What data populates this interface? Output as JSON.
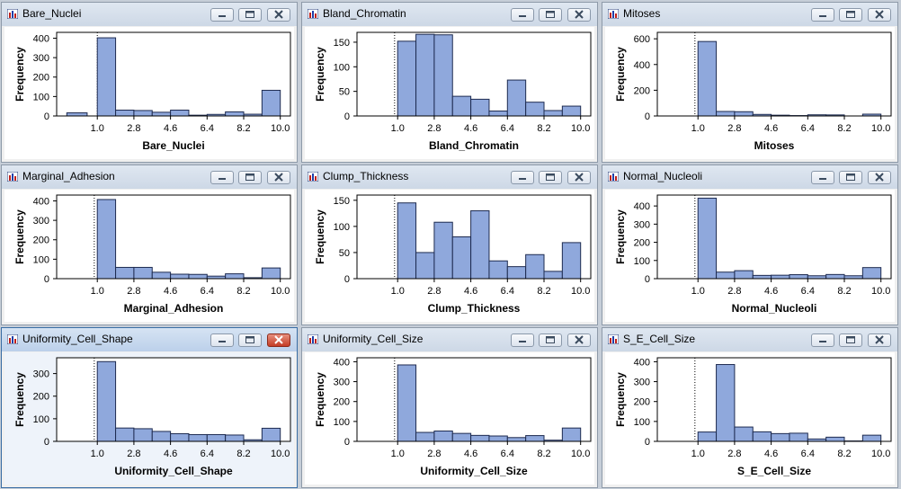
{
  "colors": {
    "bar_fill": "#8fa8dc",
    "bar_stroke": "#1e2b50",
    "plot_bg": "#ffffff"
  },
  "icons": {
    "window_icon": "bar-chart-icon"
  },
  "windows": [
    {
      "title": "Bare_Nuclei",
      "active": false
    },
    {
      "title": "Bland_Chromatin",
      "active": false
    },
    {
      "title": "Mitoses",
      "active": false
    },
    {
      "title": "Marginal_Adhesion",
      "active": false
    },
    {
      "title": "Clump_Thickness",
      "active": false
    },
    {
      "title": "Normal_Nucleoli",
      "active": false
    },
    {
      "title": "Uniformity_Cell_Shape",
      "active": true
    },
    {
      "title": "Uniformity_Cell_Size",
      "active": false
    },
    {
      "title": "S_E_Cell_Size",
      "active": false
    }
  ],
  "chart_data": [
    {
      "type": "bar",
      "xlabel": "Bare_Nuclei",
      "ylabel": "Frequency",
      "ylim": [
        0,
        430
      ],
      "yticks": [
        0,
        100,
        200,
        300,
        400
      ],
      "x_range": [
        -1.0,
        10.5
      ],
      "reference_line_x": 1.0,
      "xticks": [
        "1.0",
        "2.8",
        "4.6",
        "6.4",
        "8.2",
        "10.0"
      ],
      "bins": [
        {
          "x0": -0.5,
          "x1": 0.5,
          "value": 16
        },
        {
          "x0": 1.0,
          "x1": 1.9,
          "value": 402
        },
        {
          "x0": 1.9,
          "x1": 2.8,
          "value": 30
        },
        {
          "x0": 2.8,
          "x1": 3.7,
          "value": 28
        },
        {
          "x0": 3.7,
          "x1": 4.6,
          "value": 19
        },
        {
          "x0": 4.6,
          "x1": 5.5,
          "value": 30
        },
        {
          "x0": 5.5,
          "x1": 6.4,
          "value": 4
        },
        {
          "x0": 6.4,
          "x1": 7.3,
          "value": 8
        },
        {
          "x0": 7.3,
          "x1": 8.2,
          "value": 21
        },
        {
          "x0": 8.2,
          "x1": 9.1,
          "value": 9
        },
        {
          "x0": 9.1,
          "x1": 10.0,
          "value": 132
        }
      ]
    },
    {
      "type": "bar",
      "xlabel": "Bland_Chromatin",
      "ylabel": "Frequency",
      "ylim": [
        0,
        170
      ],
      "yticks": [
        0,
        50,
        100,
        150
      ],
      "x_range": [
        -1.0,
        10.5
      ],
      "reference_line_x": 0.85,
      "xticks": [
        "1.0",
        "2.8",
        "4.6",
        "6.4",
        "8.2",
        "10.0"
      ],
      "bins": [
        {
          "x0": 1.0,
          "x1": 1.9,
          "value": 152
        },
        {
          "x0": 1.9,
          "x1": 2.8,
          "value": 166
        },
        {
          "x0": 2.8,
          "x1": 3.7,
          "value": 165
        },
        {
          "x0": 3.7,
          "x1": 4.6,
          "value": 40
        },
        {
          "x0": 4.6,
          "x1": 5.5,
          "value": 34
        },
        {
          "x0": 5.5,
          "x1": 6.4,
          "value": 10
        },
        {
          "x0": 6.4,
          "x1": 7.3,
          "value": 73
        },
        {
          "x0": 7.3,
          "x1": 8.2,
          "value": 28
        },
        {
          "x0": 8.2,
          "x1": 9.1,
          "value": 11
        },
        {
          "x0": 9.1,
          "x1": 10.0,
          "value": 20
        }
      ]
    },
    {
      "type": "bar",
      "xlabel": "Mitoses",
      "ylabel": "Frequency",
      "ylim": [
        0,
        650
      ],
      "yticks": [
        0,
        200,
        400,
        600
      ],
      "x_range": [
        -1.0,
        10.5
      ],
      "reference_line_x": 0.85,
      "xticks": [
        "1.0",
        "2.8",
        "4.6",
        "6.4",
        "8.2",
        "10.0"
      ],
      "bins": [
        {
          "x0": 1.0,
          "x1": 1.9,
          "value": 579
        },
        {
          "x0": 1.9,
          "x1": 2.8,
          "value": 35
        },
        {
          "x0": 2.8,
          "x1": 3.7,
          "value": 33
        },
        {
          "x0": 3.7,
          "x1": 4.6,
          "value": 12
        },
        {
          "x0": 4.6,
          "x1": 5.5,
          "value": 6
        },
        {
          "x0": 5.5,
          "x1": 6.4,
          "value": 3
        },
        {
          "x0": 6.4,
          "x1": 7.3,
          "value": 9
        },
        {
          "x0": 7.3,
          "x1": 8.2,
          "value": 8
        },
        {
          "x0": 8.2,
          "x1": 9.1,
          "value": 0
        },
        {
          "x0": 9.1,
          "x1": 10.0,
          "value": 14
        }
      ]
    },
    {
      "type": "bar",
      "xlabel": "Marginal_Adhesion",
      "ylabel": "Frequency",
      "ylim": [
        0,
        430
      ],
      "yticks": [
        0,
        100,
        200,
        300,
        400
      ],
      "x_range": [
        -1.0,
        10.5
      ],
      "reference_line_x": 0.85,
      "xticks": [
        "1.0",
        "2.8",
        "4.6",
        "6.4",
        "8.2",
        "10.0"
      ],
      "bins": [
        {
          "x0": 1.0,
          "x1": 1.9,
          "value": 407
        },
        {
          "x0": 1.9,
          "x1": 2.8,
          "value": 58
        },
        {
          "x0": 2.8,
          "x1": 3.7,
          "value": 58
        },
        {
          "x0": 3.7,
          "x1": 4.6,
          "value": 33
        },
        {
          "x0": 4.6,
          "x1": 5.5,
          "value": 23
        },
        {
          "x0": 5.5,
          "x1": 6.4,
          "value": 22
        },
        {
          "x0": 6.4,
          "x1": 7.3,
          "value": 13
        },
        {
          "x0": 7.3,
          "x1": 8.2,
          "value": 25
        },
        {
          "x0": 8.2,
          "x1": 9.1,
          "value": 5
        },
        {
          "x0": 9.1,
          "x1": 10.0,
          "value": 55
        }
      ]
    },
    {
      "type": "bar",
      "xlabel": "Clump_Thickness",
      "ylabel": "Frequency",
      "ylim": [
        0,
        160
      ],
      "yticks": [
        0,
        50,
        100,
        150
      ],
      "x_range": [
        -1.0,
        10.5
      ],
      "reference_line_x": 0.85,
      "xticks": [
        "1.0",
        "2.8",
        "4.6",
        "6.4",
        "8.2",
        "10.0"
      ],
      "bins": [
        {
          "x0": 1.0,
          "x1": 1.9,
          "value": 145
        },
        {
          "x0": 1.9,
          "x1": 2.8,
          "value": 50
        },
        {
          "x0": 2.8,
          "x1": 3.7,
          "value": 108
        },
        {
          "x0": 3.7,
          "x1": 4.6,
          "value": 80
        },
        {
          "x0": 4.6,
          "x1": 5.5,
          "value": 130
        },
        {
          "x0": 5.5,
          "x1": 6.4,
          "value": 34
        },
        {
          "x0": 6.4,
          "x1": 7.3,
          "value": 23
        },
        {
          "x0": 7.3,
          "x1": 8.2,
          "value": 46
        },
        {
          "x0": 8.2,
          "x1": 9.1,
          "value": 14
        },
        {
          "x0": 9.1,
          "x1": 10.0,
          "value": 69
        }
      ]
    },
    {
      "type": "bar",
      "xlabel": "Normal_Nucleoli",
      "ylabel": "Frequency",
      "ylim": [
        0,
        460
      ],
      "yticks": [
        0,
        100,
        200,
        300,
        400
      ],
      "x_range": [
        -1.0,
        10.5
      ],
      "reference_line_x": 0.85,
      "xticks": [
        "1.0",
        "2.8",
        "4.6",
        "6.4",
        "8.2",
        "10.0"
      ],
      "bins": [
        {
          "x0": 1.0,
          "x1": 1.9,
          "value": 443
        },
        {
          "x0": 1.9,
          "x1": 2.8,
          "value": 36
        },
        {
          "x0": 2.8,
          "x1": 3.7,
          "value": 44
        },
        {
          "x0": 3.7,
          "x1": 4.6,
          "value": 18
        },
        {
          "x0": 4.6,
          "x1": 5.5,
          "value": 19
        },
        {
          "x0": 5.5,
          "x1": 6.4,
          "value": 22
        },
        {
          "x0": 6.4,
          "x1": 7.3,
          "value": 16
        },
        {
          "x0": 7.3,
          "x1": 8.2,
          "value": 23
        },
        {
          "x0": 8.2,
          "x1": 9.1,
          "value": 16
        },
        {
          "x0": 9.1,
          "x1": 10.0,
          "value": 61
        }
      ]
    },
    {
      "type": "bar",
      "xlabel": "Uniformity_Cell_Shape",
      "ylabel": "Frequency",
      "ylim": [
        0,
        370
      ],
      "yticks": [
        0,
        100,
        200,
        300
      ],
      "x_range": [
        -1.0,
        10.5
      ],
      "reference_line_x": 0.85,
      "xticks": [
        "1.0",
        "2.8",
        "4.6",
        "6.4",
        "8.2",
        "10.0"
      ],
      "bins": [
        {
          "x0": 1.0,
          "x1": 1.9,
          "value": 353
        },
        {
          "x0": 1.9,
          "x1": 2.8,
          "value": 59
        },
        {
          "x0": 2.8,
          "x1": 3.7,
          "value": 56
        },
        {
          "x0": 3.7,
          "x1": 4.6,
          "value": 44
        },
        {
          "x0": 4.6,
          "x1": 5.5,
          "value": 34
        },
        {
          "x0": 5.5,
          "x1": 6.4,
          "value": 30
        },
        {
          "x0": 6.4,
          "x1": 7.3,
          "value": 30
        },
        {
          "x0": 7.3,
          "x1": 8.2,
          "value": 28
        },
        {
          "x0": 8.2,
          "x1": 9.1,
          "value": 7
        },
        {
          "x0": 9.1,
          "x1": 10.0,
          "value": 58
        }
      ]
    },
    {
      "type": "bar",
      "xlabel": "Uniformity_Cell_Size",
      "ylabel": "Frequency",
      "ylim": [
        0,
        420
      ],
      "yticks": [
        0,
        100,
        200,
        300,
        400
      ],
      "x_range": [
        -1.0,
        10.5
      ],
      "reference_line_x": 0.85,
      "xticks": [
        "1.0",
        "2.8",
        "4.6",
        "6.4",
        "8.2",
        "10.0"
      ],
      "bins": [
        {
          "x0": 1.0,
          "x1": 1.9,
          "value": 384
        },
        {
          "x0": 1.9,
          "x1": 2.8,
          "value": 45
        },
        {
          "x0": 2.8,
          "x1": 3.7,
          "value": 52
        },
        {
          "x0": 3.7,
          "x1": 4.6,
          "value": 40
        },
        {
          "x0": 4.6,
          "x1": 5.5,
          "value": 30
        },
        {
          "x0": 5.5,
          "x1": 6.4,
          "value": 27
        },
        {
          "x0": 6.4,
          "x1": 7.3,
          "value": 19
        },
        {
          "x0": 7.3,
          "x1": 8.2,
          "value": 29
        },
        {
          "x0": 8.2,
          "x1": 9.1,
          "value": 6
        },
        {
          "x0": 9.1,
          "x1": 10.0,
          "value": 67
        }
      ]
    },
    {
      "type": "bar",
      "xlabel": "S_E_Cell_Size",
      "ylabel": "Frequency",
      "ylim": [
        0,
        420
      ],
      "yticks": [
        0,
        100,
        200,
        300,
        400
      ],
      "x_range": [
        -1.0,
        10.5
      ],
      "reference_line_x": 0.85,
      "xticks": [
        "1.0",
        "2.8",
        "4.6",
        "6.4",
        "8.2",
        "10.0"
      ],
      "bins": [
        {
          "x0": 1.0,
          "x1": 1.9,
          "value": 47
        },
        {
          "x0": 1.9,
          "x1": 2.8,
          "value": 386
        },
        {
          "x0": 2.8,
          "x1": 3.7,
          "value": 72
        },
        {
          "x0": 3.7,
          "x1": 4.6,
          "value": 48
        },
        {
          "x0": 4.6,
          "x1": 5.5,
          "value": 39
        },
        {
          "x0": 5.5,
          "x1": 6.4,
          "value": 41
        },
        {
          "x0": 6.4,
          "x1": 7.3,
          "value": 12
        },
        {
          "x0": 7.3,
          "x1": 8.2,
          "value": 21
        },
        {
          "x0": 8.2,
          "x1": 9.1,
          "value": 2
        },
        {
          "x0": 9.1,
          "x1": 10.0,
          "value": 31
        }
      ]
    }
  ]
}
